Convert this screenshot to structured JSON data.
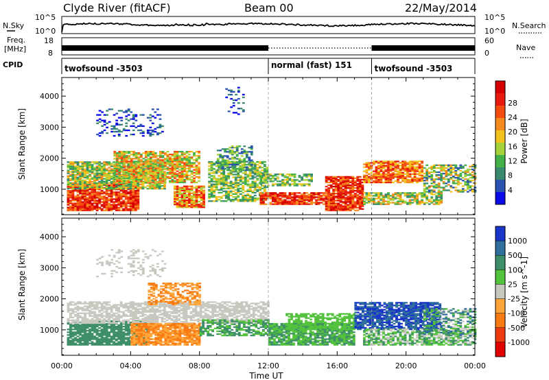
{
  "header": {
    "station": "Clyde River (fitACF)",
    "beam": "Beam 00",
    "date": "22/May/2014"
  },
  "strips": {
    "nsky_label": "N.Sky",
    "nsky_ticks": [
      "10^5",
      "10^0"
    ],
    "nsearch_label": "N.Search",
    "freq_label_line1": "Freq.",
    "freq_label_line2": "[MHz]",
    "freq_ticks": [
      "18",
      "8"
    ],
    "nave_label": "Nave",
    "nave_ticks": [
      "60",
      "0"
    ],
    "cpid_label": "CPID",
    "cpid_segments": [
      {
        "label": "twofsound -3503",
        "start_hour": 0,
        "end_hour": 12
      },
      {
        "label": "normal (fast) 151",
        "start_hour": 12,
        "end_hour": 18
      },
      {
        "label": "twofsound -3503",
        "start_hour": 18,
        "end_hour": 24
      }
    ]
  },
  "axes": {
    "xlabel": "Time UT",
    "ylabel": "Slant Range [km]",
    "xticks": [
      "00:00",
      "04:00",
      "08:00",
      "12:00",
      "16:00",
      "20:00",
      "00:00"
    ],
    "yticks": [
      "1000",
      "2000",
      "3000",
      "4000"
    ]
  },
  "chart_data": [
    {
      "type": "heatmap",
      "panel": "power",
      "x_range_hours": [
        0,
        24
      ],
      "y_range_km": [
        180,
        4600
      ],
      "colorbar_label": "Power [dB]",
      "colorbar_ticks": [
        "4",
        "8",
        "12",
        "16",
        "20",
        "24",
        "28"
      ],
      "colorbar_colors": [
        "#0a0ae6",
        "#2a52b0",
        "#3a8a70",
        "#44b048",
        "#a6d13b",
        "#f2c21d",
        "#f58a1e",
        "#f44c10",
        "#e81a0e",
        "#d40000"
      ],
      "dashed_marker_hours": [
        12,
        18
      ]
    },
    {
      "type": "heatmap",
      "panel": "velocity",
      "x_range_hours": [
        0,
        24
      ],
      "y_range_km": [
        180,
        4600
      ],
      "colorbar_label": "Velocity [m s^-1]",
      "colorbar_ticks": [
        "1000",
        "500",
        "100",
        "25",
        "-25",
        "-100",
        "-500",
        "-1000"
      ],
      "colorbar_colors": [
        "#1a36c8",
        "#2f6f9c",
        "#3e8e6a",
        "#53c23c",
        "#c8c8c0",
        "#ffa53a",
        "#f77a12",
        "#ee3a10",
        "#e00000"
      ],
      "dashed_marker_hours": [
        12,
        18
      ]
    }
  ]
}
